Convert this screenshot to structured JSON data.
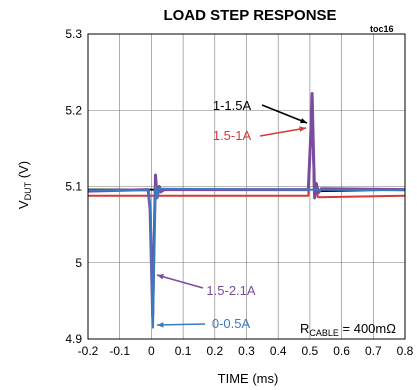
{
  "chart_data": {
    "type": "line",
    "title": "LOAD STEP RESPONSE",
    "tag": "toc16",
    "xlabel": "TIME (ms)",
    "ylabel": {
      "main": "V",
      "sub": "DUT",
      "suffix": " (V)"
    },
    "xlim": [
      -0.2,
      0.8
    ],
    "ylim": [
      4.9,
      5.3
    ],
    "x_ticks": [
      -0.2,
      -0.1,
      0,
      0.1,
      0.2,
      0.3,
      0.4,
      0.5,
      0.6,
      0.7,
      0.8
    ],
    "x_tick_labels": [
      "-0.2",
      "-0.1",
      "0",
      "0.1",
      "0.2",
      "0.3",
      "0.4",
      "0.5",
      "0.6",
      "0.7",
      "0.8"
    ],
    "y_ticks": [
      4.9,
      5,
      5.1,
      5.2,
      5.3
    ],
    "y_tick_labels": [
      "4.9",
      "5",
      "5.1",
      "5.2",
      "5.3"
    ],
    "grid": true,
    "cable_note": {
      "main": "R",
      "sub": "CABLE",
      "suffix": " = 400mΩ"
    },
    "series": [
      {
        "name": "1-1.5A",
        "color": "#000000",
        "label_color": "#000000",
        "points": [
          [
            -0.2,
            5.096
          ],
          [
            0.495,
            5.096
          ],
          [
            0.503,
            5.17
          ],
          [
            0.508,
            5.2
          ],
          [
            0.513,
            5.09
          ],
          [
            0.519,
            5.101
          ],
          [
            0.524,
            5.094
          ],
          [
            0.8,
            5.096
          ]
        ]
      },
      {
        "name": "1.5-1A",
        "color": "#d43a36",
        "label_color": "#d43a36",
        "points": [
          [
            -0.2,
            5.088
          ],
          [
            0.495,
            5.088
          ],
          [
            0.503,
            5.16
          ],
          [
            0.508,
            5.19
          ],
          [
            0.514,
            5.087
          ],
          [
            0.52,
            5.094
          ],
          [
            0.526,
            5.086
          ],
          [
            0.8,
            5.088
          ]
        ]
      },
      {
        "name": "1.5-2.1A",
        "color": "#7a4b9e",
        "label_color": "#7a4b9e",
        "points": [
          [
            -0.2,
            5.094
          ],
          [
            -0.01,
            5.096
          ],
          [
            -0.004,
            5.07
          ],
          [
            0.0,
            5.0
          ],
          [
            0.004,
            4.93
          ],
          [
            0.009,
            5.04
          ],
          [
            0.013,
            5.115
          ],
          [
            0.018,
            5.085
          ],
          [
            0.025,
            5.1
          ],
          [
            0.03,
            5.093
          ],
          [
            0.04,
            5.096
          ],
          [
            0.495,
            5.096
          ],
          [
            0.502,
            5.16
          ],
          [
            0.507,
            5.222
          ],
          [
            0.511,
            5.15
          ],
          [
            0.515,
            5.085
          ],
          [
            0.52,
            5.104
          ],
          [
            0.527,
            5.092
          ],
          [
            0.536,
            5.097
          ],
          [
            0.8,
            5.096
          ]
        ]
      },
      {
        "name": "0-0.5A",
        "color": "#3a7bbf",
        "label_color": "#3a7bbf",
        "points": [
          [
            -0.2,
            5.095
          ],
          [
            -0.008,
            5.095
          ],
          [
            -0.002,
            5.06
          ],
          [
            0.002,
            4.96
          ],
          [
            0.005,
            4.915
          ],
          [
            0.009,
            5.02
          ],
          [
            0.013,
            5.1
          ],
          [
            0.017,
            5.085
          ],
          [
            0.023,
            5.097
          ],
          [
            0.8,
            5.095
          ]
        ]
      }
    ]
  }
}
